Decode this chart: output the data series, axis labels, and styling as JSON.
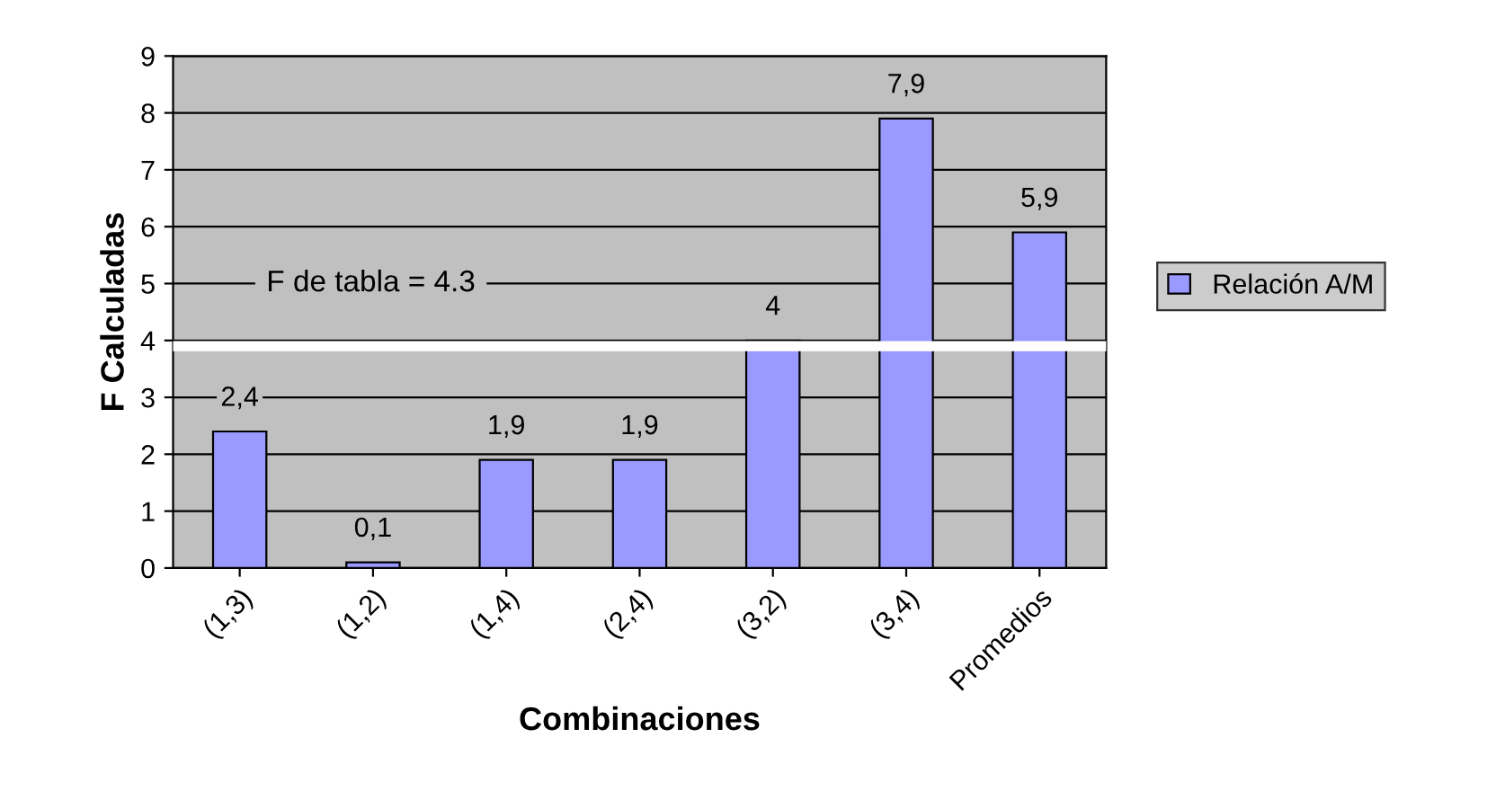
{
  "chart_data": {
    "type": "bar",
    "xlabel": "Combinaciones",
    "ylabel": "F Calculadas",
    "categories": [
      "(1,3)",
      "(1,2)",
      "(1,4)",
      "(2,4)",
      "(3,2)",
      "(3,4)",
      "Promedios"
    ],
    "series": [
      {
        "name": "Relación A/M",
        "color": "#9999ff",
        "values": [
          2.4,
          0.1,
          1.9,
          1.9,
          4,
          7.9,
          5.9
        ],
        "value_labels": [
          "2,4",
          "0,1",
          "1,9",
          "1,9",
          "4",
          "7,9",
          "5,9"
        ]
      }
    ],
    "ylim": [
      0,
      9
    ],
    "yticks": [
      0,
      1,
      2,
      3,
      4,
      5,
      6,
      7,
      8,
      9
    ],
    "ref_lines": [
      {
        "axis": "y",
        "value": 3.9,
        "color": "#ffffff"
      }
    ],
    "annotations": [
      "F de tabla = 4.3"
    ],
    "grid": "y",
    "legend": "right"
  }
}
